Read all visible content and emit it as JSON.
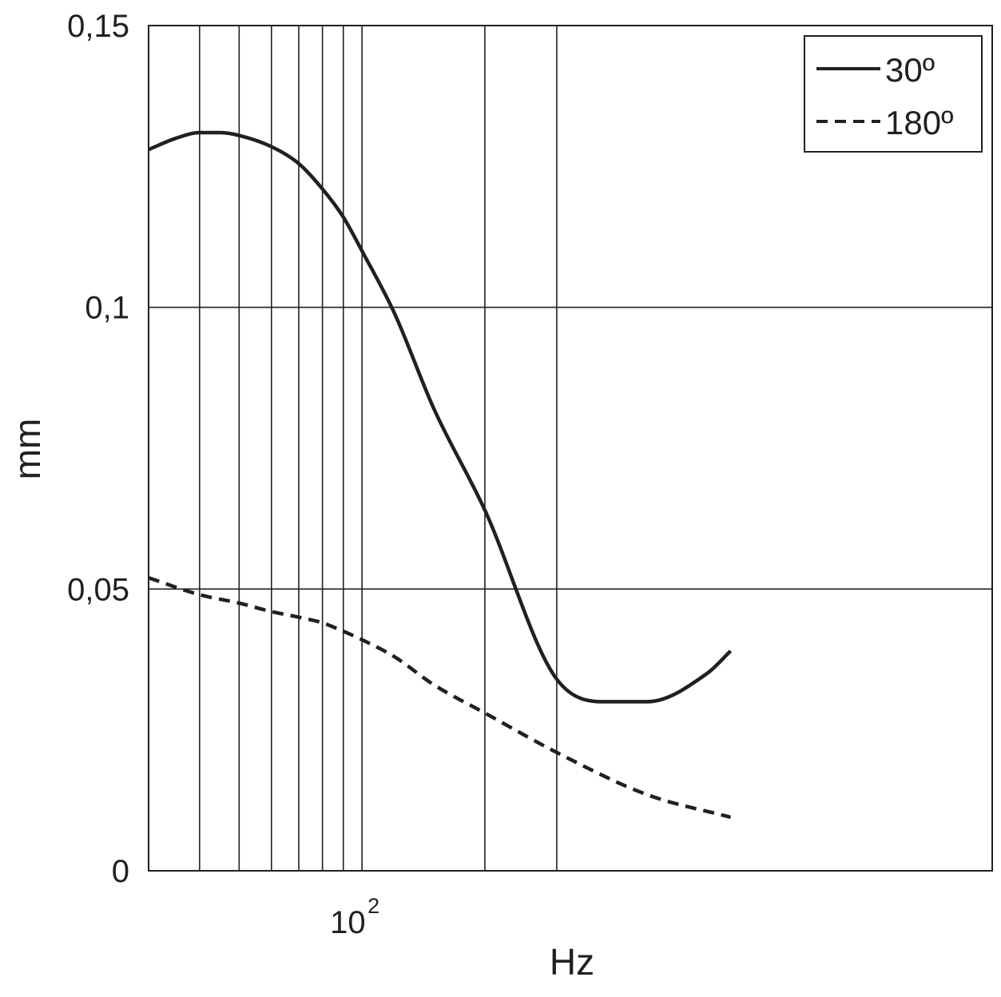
{
  "chart_data": {
    "type": "line",
    "title": "",
    "xlabel": "Hz",
    "ylabel": "mm",
    "x_scale": "log",
    "xlim": [
      30,
      3500
    ],
    "ylim": [
      0,
      0.15
    ],
    "x_major_tick_values": [
      100
    ],
    "x_major_tick_labels": [
      {
        "base": "10",
        "exponent": "2"
      }
    ],
    "x_grid_values": [
      40,
      50,
      60,
      70,
      80,
      90,
      100,
      200,
      300
    ],
    "y_ticks": [
      0,
      0.05,
      0.1,
      0.15
    ],
    "y_tick_labels": [
      "0",
      "0,05",
      "0,1",
      "0,15"
    ],
    "grid": true,
    "legend_position": "top-right",
    "series": [
      {
        "name": "30º",
        "style": "solid",
        "color": "#231f20",
        "x": [
          30,
          35,
          40,
          45,
          50,
          60,
          70,
          80,
          90,
          100,
          120,
          150,
          200,
          300,
          400,
          500,
          700,
          800
        ],
        "y": [
          0.128,
          0.13,
          0.131,
          0.131,
          0.1305,
          0.1285,
          0.1255,
          0.121,
          0.116,
          0.11,
          0.099,
          0.082,
          0.064,
          0.034,
          0.03,
          0.03,
          0.035,
          0.039
        ]
      },
      {
        "name": "180º",
        "style": "dashed",
        "color": "#231f20",
        "x": [
          30,
          40,
          50,
          60,
          70,
          80,
          90,
          100,
          120,
          150,
          200,
          300,
          500,
          800
        ],
        "y": [
          0.052,
          0.049,
          0.0475,
          0.046,
          0.045,
          0.044,
          0.0425,
          0.041,
          0.038,
          0.033,
          0.028,
          0.021,
          0.0135,
          0.0095
        ]
      }
    ]
  }
}
